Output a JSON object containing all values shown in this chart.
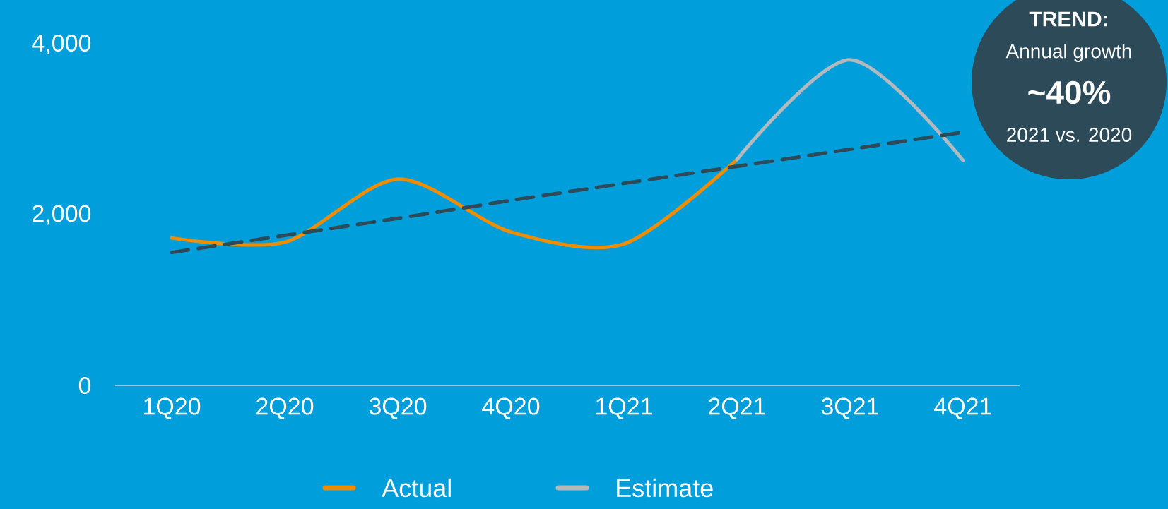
{
  "chart_data": {
    "type": "line",
    "categories": [
      "1Q20",
      "2Q20",
      "3Q20",
      "4Q20",
      "1Q21",
      "2Q21",
      "3Q21",
      "4Q21"
    ],
    "series": [
      {
        "name": "Actual",
        "color": "#f08c00",
        "values": [
          1730,
          1680,
          2420,
          1800,
          1660,
          2650,
          null,
          null
        ]
      },
      {
        "name": "Estimate",
        "color": "#b4b9bd",
        "values": [
          null,
          null,
          null,
          null,
          null,
          2650,
          3820,
          2640
        ]
      },
      {
        "color": "#2c4a58",
        "line_style": "dashed",
        "values": [
          1560,
          1760,
          1960,
          2170,
          2370,
          2570,
          2770,
          2970
        ]
      }
    ],
    "ylim": [
      0,
      4000
    ],
    "yticks": [
      {
        "value": 0,
        "label": "0"
      },
      {
        "value": 2000,
        "label": "2,000"
      },
      {
        "value": 4000,
        "label": "4,000"
      }
    ],
    "grid": false,
    "legend": "bottom",
    "marker": "none",
    "annotations": [
      "TREND:",
      "Annual growth",
      "~40%",
      "2021 vs. 2020"
    ]
  }
}
